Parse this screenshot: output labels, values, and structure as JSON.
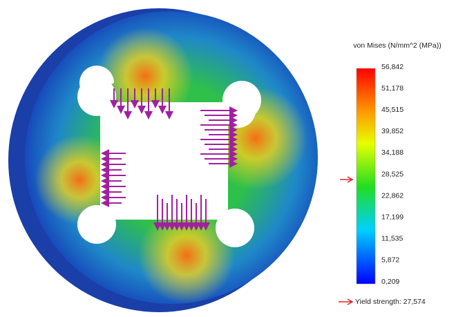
{
  "legend": {
    "title": "von Mises (N/mm^2 (MPa))",
    "ticks": [
      "56,842",
      "51,178",
      "45,515",
      "39,852",
      "34,188",
      "28,525",
      "22,862",
      "17,199",
      "11,535",
      "5,872",
      "0,209"
    ],
    "yield_label": "Yield strength: 27,574"
  }
}
